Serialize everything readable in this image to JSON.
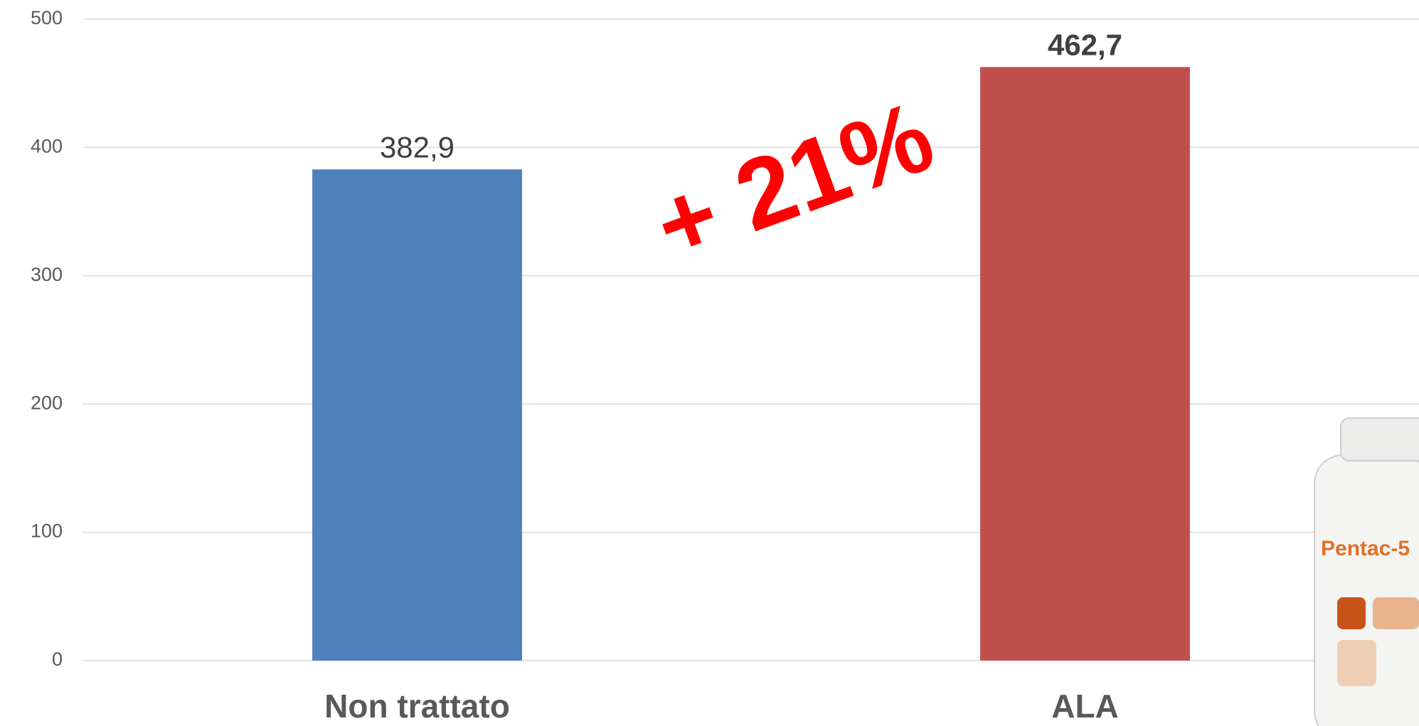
{
  "chart_data": {
    "type": "bar",
    "categories": [
      "Non trattato",
      "ALA"
    ],
    "values": [
      382.9,
      462.7
    ],
    "value_labels": [
      "382,9",
      "462,7"
    ],
    "colors": [
      "#4f81bd",
      "#c0504d"
    ],
    "ylim": [
      0,
      500
    ],
    "yticks": [
      0,
      100,
      200,
      300,
      400,
      500
    ],
    "grid": true,
    "annotation": "+ 21%",
    "product_label": "Pentac-5"
  }
}
